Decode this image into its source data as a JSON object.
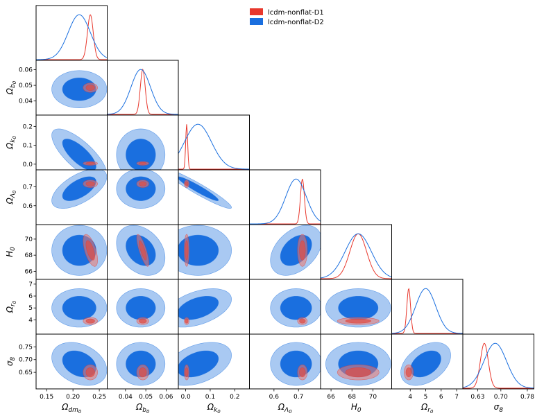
{
  "chart_data": {
    "type": "corner",
    "params": [
      {
        "key": "om",
        "label": "Ωdm0",
        "base": "Ω",
        "sub": "dm",
        "subsub": "0",
        "range": [
          0.13,
          0.265
        ],
        "ticks": [
          0.15,
          0.2,
          0.25
        ],
        "ticklabels": [
          "0.15",
          "0.20",
          "0.25"
        ]
      },
      {
        "key": "ob",
        "label": "Ωb0",
        "base": "Ω",
        "sub": "b",
        "subsub": "0",
        "range": [
          0.031,
          0.066
        ],
        "ticks": [
          0.04,
          0.05,
          0.06
        ],
        "ticklabels": [
          "0.04",
          "0.05",
          "0.06"
        ]
      },
      {
        "key": "ok",
        "label": "Ωk0",
        "base": "Ω",
        "sub": "k",
        "subsub": "0",
        "range": [
          -0.03,
          0.26
        ],
        "ticks": [
          0.0,
          0.1,
          0.2
        ],
        "ticklabels": [
          "0.0",
          "0.1",
          "0.2"
        ]
      },
      {
        "key": "ol",
        "label": "ΩΛ0",
        "base": "Ω",
        "sub": "Λ",
        "subsub": "0",
        "range": [
          0.5,
          0.79
        ],
        "ticks": [
          0.6,
          0.7
        ],
        "ticklabels": [
          "0.6",
          "0.7"
        ]
      },
      {
        "key": "h0",
        "label": "H0",
        "base": "H",
        "sub": "0",
        "subsub": "",
        "range": [
          65.0,
          71.8
        ],
        "ticks": [
          66,
          68,
          70
        ],
        "ticklabels": [
          "66",
          "68",
          "70"
        ]
      },
      {
        "key": "or",
        "label": "Ωr0",
        "base": "Ω",
        "sub": "r",
        "subsub": "0",
        "range": [
          2.8,
          7.4
        ],
        "ticks": [
          4,
          5,
          6,
          7
        ],
        "ticklabels": [
          "4",
          "5",
          "6",
          "7"
        ]
      },
      {
        "key": "s8",
        "label": "σ8",
        "base": "σ",
        "sub": "8",
        "subsub": "",
        "range": [
          0.585,
          0.8
        ],
        "ticks": [
          0.65,
          0.7,
          0.75
        ],
        "ticklabels": [
          "0.65",
          "0.70",
          "0.75"
        ]
      }
    ],
    "bottom_ticks": {
      "s8": {
        "ticks": [
          0.63,
          0.7,
          0.78
        ],
        "ticklabels": [
          "0.63",
          "0.70",
          "0.78"
        ]
      }
    },
    "series": [
      {
        "name": "lcdm-nonflat-D1",
        "color": "#e8372c",
        "mean": {
          "om": 0.233,
          "ob": 0.0485,
          "ok": 0.004,
          "ol": 0.716,
          "h0": 68.6,
          "or": 3.9,
          "s8": 0.65
        },
        "sigma": {
          "om": 0.0055,
          "ob": 0.0012,
          "ok": 0.004,
          "ol": 0.008,
          "h0": 0.8,
          "or": 0.12,
          "s8": 0.012
        },
        "corr": {
          "om-ob": 0.0,
          "om-h0": -0.6,
          "ob-h0": -0.8,
          "h0-or": 0.0,
          "h0-s8": 0.0
        }
      },
      {
        "name": "lcdm-nonflat-D2",
        "color": "#1a6fdf",
        "mean": {
          "om": 0.212,
          "ob": 0.0475,
          "ok": 0.05,
          "ol": 0.69,
          "h0": 68.6,
          "or": 5.0,
          "s8": 0.683
        },
        "sigma": {
          "om": 0.021,
          "ob": 0.0048,
          "ok": 0.055,
          "ol": 0.042,
          "h0": 1.25,
          "or": 0.65,
          "s8": 0.034
        },
        "corr": {
          "om-ok": -0.75,
          "om-ol": 0.6,
          "ok-ol": -0.95,
          "ob-h0": -0.3,
          "ok-or": 0.45,
          "om-s8": -0.3,
          "ok-s8": 0.4,
          "ol-h0": 0.4,
          "or-s8": 0.4
        }
      }
    ]
  },
  "legend": {
    "items": [
      {
        "label": "lcdm-nonflat-D1",
        "color": "#e8372c"
      },
      {
        "label": "lcdm-nonflat-D2",
        "color": "#1a6fdf"
      }
    ]
  }
}
